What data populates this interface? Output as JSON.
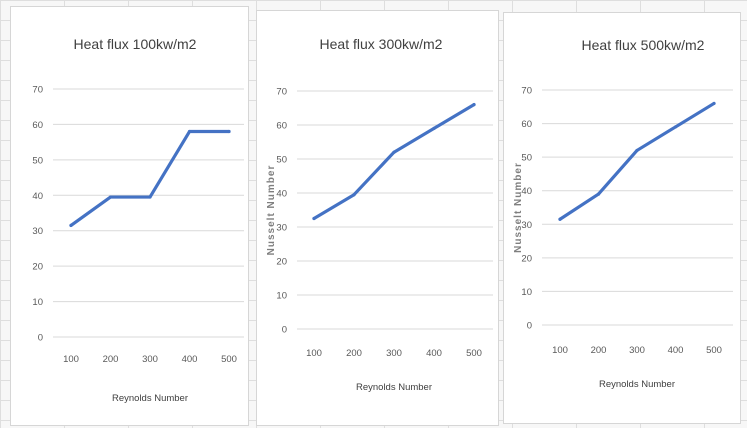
{
  "chart_data": [
    {
      "type": "line",
      "title": "Heat flux 100kw/m2",
      "xlabel": "Reynolds Number",
      "ylabel": "",
      "categories": [
        "100",
        "200",
        "300",
        "400",
        "500"
      ],
      "series": [
        {
          "values": [
            31.5,
            39.5,
            39.5,
            58,
            58
          ]
        }
      ],
      "ylim": [
        0,
        70
      ],
      "yticks": [
        "0",
        "10",
        "20",
        "30",
        "40",
        "50",
        "60",
        "70"
      ],
      "grid": true,
      "color": "#4472c4"
    },
    {
      "type": "line",
      "title": "Heat flux 300kw/m2",
      "xlabel": "Reynolds Number",
      "ylabel": "Nusselt Number",
      "categories": [
        "100",
        "200",
        "300",
        "400",
        "500"
      ],
      "series": [
        {
          "values": [
            32.5,
            39.5,
            52,
            59,
            66
          ]
        }
      ],
      "ylim": [
        0,
        70
      ],
      "yticks": [
        "0",
        "10",
        "20",
        "30",
        "40",
        "50",
        "60",
        "70"
      ],
      "grid": true,
      "color": "#4472c4"
    },
    {
      "type": "line",
      "title": "Heat flux 500kw/m2",
      "xlabel": "Reynolds Number",
      "ylabel": "Nusselt Number",
      "categories": [
        "100",
        "200",
        "300",
        "400",
        "500"
      ],
      "series": [
        {
          "values": [
            31.5,
            39,
            52,
            59,
            66
          ]
        }
      ],
      "ylim": [
        0,
        70
      ],
      "yticks": [
        "0",
        "10",
        "20",
        "30",
        "40",
        "50",
        "60",
        "70"
      ],
      "grid": true,
      "color": "#4472c4"
    }
  ]
}
